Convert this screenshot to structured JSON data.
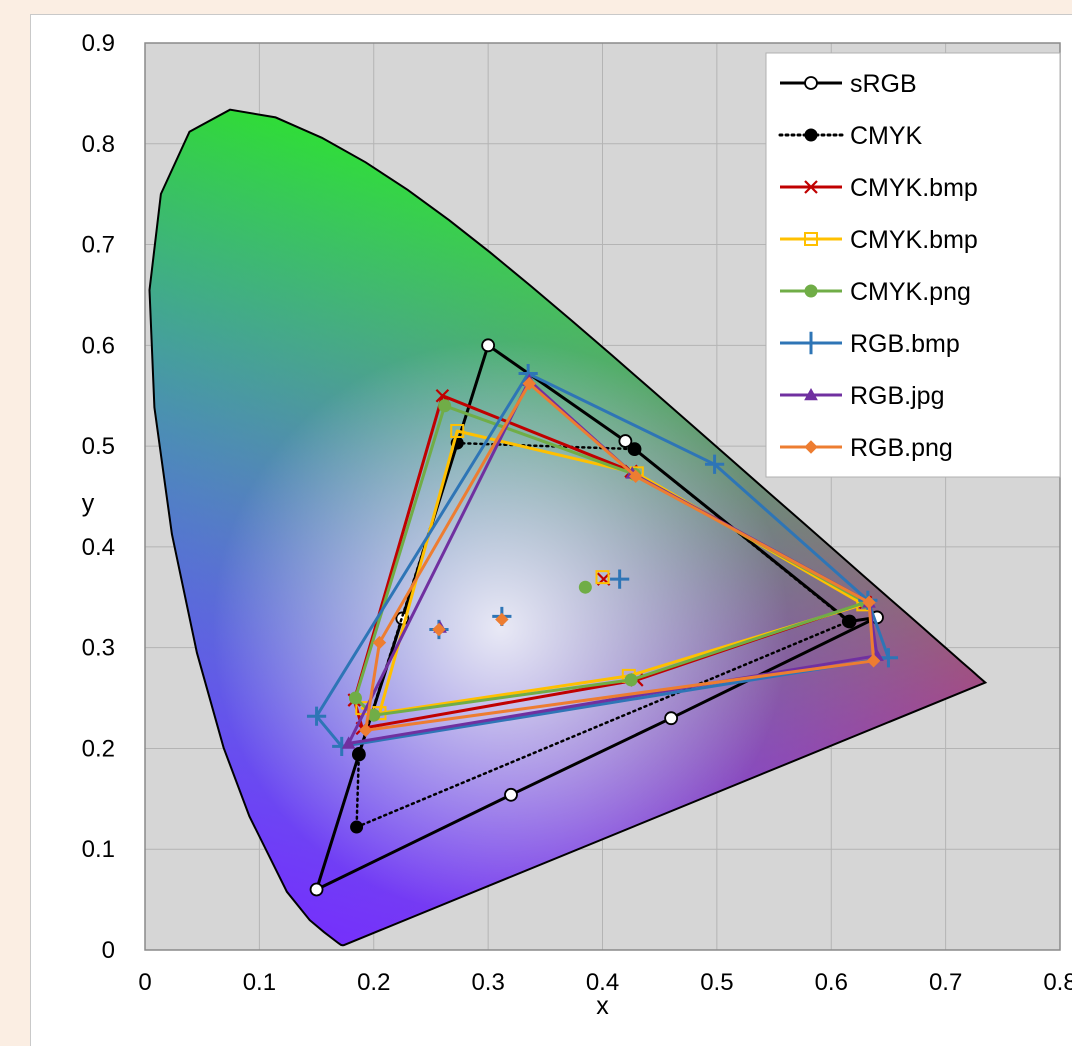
{
  "chart_data": {
    "type": "scatter",
    "title": "",
    "xlabel": "x",
    "ylabel": "y",
    "xlim": [
      0,
      0.8
    ],
    "ylim": [
      0,
      0.9
    ],
    "xticks": [
      "0",
      "0.1",
      "0.2",
      "0.3",
      "0.4",
      "0.5",
      "0.6",
      "0.7",
      "0.8"
    ],
    "yticks": [
      "0",
      "0.1",
      "0.2",
      "0.3",
      "0.4",
      "0.5",
      "0.6",
      "0.7",
      "0.8",
      "0.9"
    ],
    "grid": true,
    "legend_position": "top-right",
    "background": "CIE 1931 chromaticity diagram (spectral locus)",
    "series": [
      {
        "name": "sRGB",
        "color": "#000000",
        "marker": "open-circle",
        "dash": "solid",
        "x": [
          0.15,
          0.32,
          0.46,
          0.64,
          0.616,
          0.428,
          0.42,
          0.3,
          0.225,
          0.187,
          0.15
        ],
        "y": [
          0.06,
          0.154,
          0.23,
          0.33,
          0.326,
          0.497,
          0.505,
          0.6,
          0.329,
          0.194,
          0.06
        ]
      },
      {
        "name": "CMYK",
        "color": "#000000",
        "marker": "filled-circle",
        "dash": "dotted",
        "x": [
          0.185,
          0.615,
          0.428,
          0.273,
          0.187,
          0.185
        ],
        "y": [
          0.122,
          0.326,
          0.497,
          0.503,
          0.195,
          0.122
        ]
      },
      {
        "name": "CMYK.bmp",
        "color": "#c00000",
        "marker": "x",
        "x": [
          0.183,
          0.26,
          0.425,
          0.63,
          0.43,
          0.19,
          0.183
        ],
        "y": [
          0.248,
          0.55,
          0.475,
          0.345,
          0.268,
          0.22,
          0.248
        ],
        "white_point": {
          "x": 0.401,
          "y": 0.368
        }
      },
      {
        "name": "CMYK.bmp",
        "color": "#ffc000",
        "marker": "open-square",
        "x": [
          0.205,
          0.273,
          0.43,
          0.628,
          0.423,
          0.205,
          0.19,
          0.205
        ],
        "y": [
          0.235,
          0.515,
          0.473,
          0.343,
          0.272,
          0.235,
          0.24,
          0.235
        ],
        "white_point": {
          "x": 0.4,
          "y": 0.37
        }
      },
      {
        "name": "CMYK.png",
        "color": "#70ad47",
        "marker": "filled-circle",
        "x": [
          0.184,
          0.262,
          0.428,
          0.63,
          0.425,
          0.2,
          0.184
        ],
        "y": [
          0.25,
          0.54,
          0.472,
          0.345,
          0.268,
          0.233,
          0.25
        ],
        "white_point": {
          "x": 0.385,
          "y": 0.36
        }
      },
      {
        "name": "RGB.bmp",
        "color": "#2e75b6",
        "marker": "plus",
        "x": [
          0.15,
          0.335,
          0.498,
          0.632,
          0.65,
          0.172,
          0.15
        ],
        "y": [
          0.232,
          0.572,
          0.482,
          0.347,
          0.29,
          0.202,
          0.232
        ],
        "white_points": [
          {
            "x": 0.257,
            "y": 0.318
          },
          {
            "x": 0.312,
            "y": 0.331
          },
          {
            "x": 0.415,
            "y": 0.368
          }
        ]
      },
      {
        "name": "RGB.jpg",
        "color": "#7030a0",
        "marker": "triangle",
        "x": [
          0.178,
          0.336,
          0.426,
          0.633,
          0.64,
          0.178
        ],
        "y": [
          0.205,
          0.565,
          0.473,
          0.345,
          0.292,
          0.205
        ],
        "white_point": {
          "x": 0.258,
          "y": 0.32
        }
      },
      {
        "name": "RGB.png",
        "color": "#ed7d31",
        "marker": "diamond",
        "x": [
          0.193,
          0.205,
          0.336,
          0.429,
          0.633,
          0.637,
          0.193
        ],
        "y": [
          0.218,
          0.305,
          0.562,
          0.47,
          0.345,
          0.287,
          0.218
        ],
        "white_points": [
          {
            "x": 0.257,
            "y": 0.318
          },
          {
            "x": 0.312,
            "y": 0.328
          }
        ]
      }
    ]
  }
}
